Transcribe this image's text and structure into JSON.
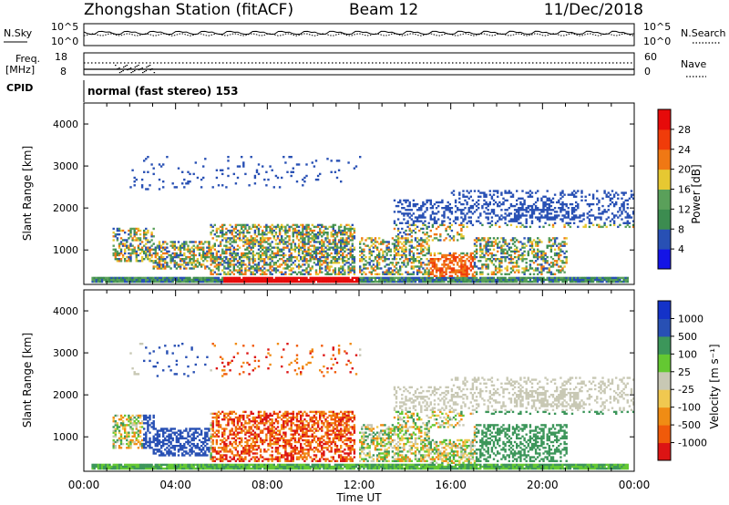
{
  "header": {
    "title": "Zhongshan Station (fitACF)",
    "beam": "Beam 12",
    "date": "11/Dec/2018"
  },
  "noise_panel": {
    "left_label": "N.Sky",
    "right_label": "N.Search",
    "left_ticks": [
      "10^5",
      "10^0"
    ],
    "right_ticks": [
      "10^5",
      "10^0"
    ]
  },
  "freq_panel": {
    "left_label_1": "Freq.",
    "left_label_2": "[MHz]",
    "right_label": "Nave",
    "left_ticks": [
      "18",
      "8"
    ],
    "right_ticks": [
      "60",
      "0"
    ]
  },
  "cpid": {
    "label": "CPID",
    "value": "normal (fast stereo) 153"
  },
  "colors": {
    "power_scale": [
      "#1414e6",
      "#2850b4",
      "#3c8c50",
      "#5aa05a",
      "#e6c832",
      "#f07814",
      "#f03c0a",
      "#e60a0a"
    ],
    "velocity_scale": [
      "#dc1414",
      "#f05a0a",
      "#f08c14",
      "#f0c850",
      "#c8c8b4",
      "#64c832",
      "#3c965a",
      "#2850b4",
      "#1432c8"
    ]
  },
  "chart_data": [
    {
      "type": "heatmap",
      "name": "power",
      "ylabel": "Slant Range [km]",
      "xlabel": "",
      "ylim": [
        180,
        4500
      ],
      "y_ticks": [
        "4000",
        "3000",
        "2000",
        "1000"
      ],
      "x_ticks": [
        "00:00",
        "04:00",
        "08:00",
        "12:00",
        "16:00",
        "20:00",
        "00:00"
      ],
      "colorbar_label": "Power [dB]",
      "colorbar_ticks": [
        "28",
        "24",
        "20",
        "16",
        "12",
        "8",
        "4"
      ]
    },
    {
      "type": "heatmap",
      "name": "velocity",
      "ylabel": "Slant Range [km]",
      "xlabel": "Time UT",
      "ylim": [
        180,
        4500
      ],
      "y_ticks": [
        "4000",
        "3000",
        "2000",
        "1000"
      ],
      "x_ticks": [
        "00:00",
        "04:00",
        "08:00",
        "12:00",
        "16:00",
        "20:00",
        "00:00"
      ],
      "colorbar_label": "Velocity [m s⁻¹]",
      "colorbar_ticks": [
        "1000",
        "500",
        "100",
        "25",
        "-25",
        "-100",
        "-500",
        "-1000"
      ]
    }
  ]
}
